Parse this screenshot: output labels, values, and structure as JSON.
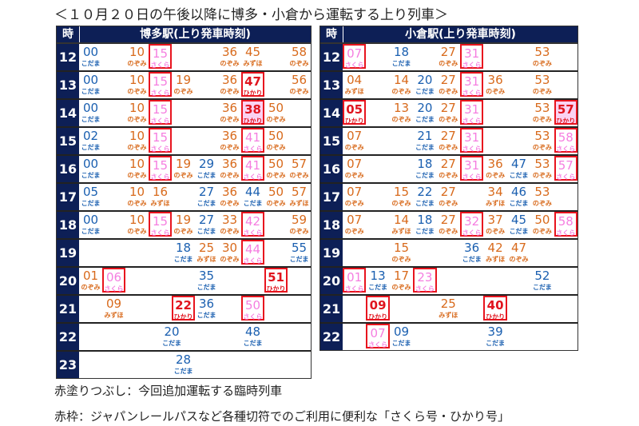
{
  "title": "＜１０月２０日の午後以降に博多・小倉から運転する上り列車＞",
  "colors": {
    "header_bg": "#0d1f56",
    "kodama": "#1a5fb0",
    "nozomi": "#d86a1c",
    "sakura": "#f57ee0",
    "hikari": "#e0141e",
    "box": "#e8141e",
    "fill": "#fbd2f2"
  },
  "tables": [
    {
      "hour_label": "時",
      "title": "博多駅(上り発車時刻)",
      "rows": [
        {
          "hour": "12",
          "trains": [
            {
              "c": 0,
              "min": "00",
              "type": "こだま"
            },
            {
              "c": 2,
              "min": "10",
              "type": "のぞみ"
            },
            {
              "c": 3,
              "min": "15",
              "type": "さくら",
              "box": true
            },
            {
              "c": 6,
              "min": "36",
              "type": "のぞみ"
            },
            {
              "c": 7,
              "min": "45",
              "type": "みずほ"
            },
            {
              "c": 9,
              "min": "58",
              "type": "のぞみ"
            }
          ]
        },
        {
          "hour": "13",
          "trains": [
            {
              "c": 0,
              "min": "00",
              "type": "こだま"
            },
            {
              "c": 2,
              "min": "10",
              "type": "のぞみ"
            },
            {
              "c": 3,
              "min": "15",
              "type": "さくら",
              "box": true
            },
            {
              "c": 4,
              "min": "19",
              "type": "のぞみ"
            },
            {
              "c": 6,
              "min": "36",
              "type": "のぞみ"
            },
            {
              "c": 7,
              "min": "47",
              "type": "ひかり",
              "box": true
            },
            {
              "c": 9,
              "min": "56",
              "type": "のぞみ"
            }
          ]
        },
        {
          "hour": "14",
          "trains": [
            {
              "c": 0,
              "min": "00",
              "type": "こだま"
            },
            {
              "c": 2,
              "min": "10",
              "type": "のぞみ"
            },
            {
              "c": 3,
              "min": "15",
              "type": "さくら",
              "box": true
            },
            {
              "c": 6,
              "min": "36",
              "type": "のぞみ"
            },
            {
              "c": 7,
              "min": "38",
              "type": "ひかり",
              "box": true,
              "fill": true
            },
            {
              "c": 8,
              "min": "50",
              "type": "のぞみ"
            }
          ]
        },
        {
          "hour": "15",
          "trains": [
            {
              "c": 0,
              "min": "02",
              "type": "こだま"
            },
            {
              "c": 2,
              "min": "10",
              "type": "のぞみ"
            },
            {
              "c": 3,
              "min": "15",
              "type": "さくら",
              "box": true
            },
            {
              "c": 6,
              "min": "36",
              "type": "のぞみ"
            },
            {
              "c": 7,
              "min": "41",
              "type": "さくら",
              "box": true
            },
            {
              "c": 8,
              "min": "50",
              "type": "のぞみ"
            }
          ]
        },
        {
          "hour": "16",
          "trains": [
            {
              "c": 0,
              "min": "00",
              "type": "こだま"
            },
            {
              "c": 2,
              "min": "10",
              "type": "のぞみ"
            },
            {
              "c": 3,
              "min": "15",
              "type": "さくら",
              "box": true
            },
            {
              "c": 4,
              "min": "19",
              "type": "のぞみ"
            },
            {
              "c": 5,
              "min": "29",
              "type": "こだま"
            },
            {
              "c": 6,
              "min": "36",
              "type": "のぞみ"
            },
            {
              "c": 7,
              "min": "41",
              "type": "さくら",
              "box": true
            },
            {
              "c": 8,
              "min": "50",
              "type": "のぞみ"
            },
            {
              "c": 9,
              "min": "57",
              "type": "のぞみ"
            }
          ]
        },
        {
          "hour": "17",
          "trains": [
            {
              "c": 0,
              "min": "05",
              "type": "こだま"
            },
            {
              "c": 2,
              "min": "10",
              "type": "のぞみ"
            },
            {
              "c": 3,
              "min": "16",
              "type": "みずほ"
            },
            {
              "c": 5,
              "min": "27",
              "type": "こだま"
            },
            {
              "c": 6,
              "min": "36",
              "type": "のぞみ"
            },
            {
              "c": 7,
              "min": "44",
              "type": "こだま"
            },
            {
              "c": 8,
              "min": "50",
              "type": "のぞみ"
            },
            {
              "c": 9,
              "min": "57",
              "type": "みずほ"
            }
          ]
        },
        {
          "hour": "18",
          "trains": [
            {
              "c": 0,
              "min": "00",
              "type": "こだま"
            },
            {
              "c": 2,
              "min": "10",
              "type": "のぞみ"
            },
            {
              "c": 3,
              "min": "15",
              "type": "さくら",
              "box": true
            },
            {
              "c": 4,
              "min": "19",
              "type": "のぞみ"
            },
            {
              "c": 5,
              "min": "27",
              "type": "こだま"
            },
            {
              "c": 6,
              "min": "33",
              "type": "のぞみ"
            },
            {
              "c": 7,
              "min": "42",
              "type": "さくら",
              "box": true
            },
            {
              "c": 9,
              "min": "59",
              "type": "のぞみ"
            }
          ]
        },
        {
          "hour": "19",
          "trains": [
            {
              "c": 4,
              "min": "18",
              "type": "こだま"
            },
            {
              "c": 5,
              "min": "25",
              "type": "みずほ"
            },
            {
              "c": 6,
              "min": "30",
              "type": "のぞみ"
            },
            {
              "c": 7,
              "min": "44",
              "type": "さくら",
              "box": true
            },
            {
              "c": 9,
              "min": "55",
              "type": "こだま"
            }
          ]
        },
        {
          "hour": "20",
          "trains": [
            {
              "c": 0,
              "min": "01",
              "type": "のぞみ"
            },
            {
              "c": 1,
              "min": "06",
              "type": "さくら",
              "box": true
            },
            {
              "c": 5,
              "min": "35",
              "type": "こだま"
            },
            {
              "c": 8,
              "min": "51",
              "type": "ひかり",
              "box": true
            }
          ]
        },
        {
          "hour": "21",
          "trains": [
            {
              "c": 1,
              "min": "09",
              "type": "みずほ"
            },
            {
              "c": 4,
              "min": "22",
              "type": "ひかり",
              "box": true
            },
            {
              "c": 5,
              "min": "36",
              "type": "こだま"
            },
            {
              "c": 7,
              "min": "50",
              "type": "さくら",
              "box": true
            }
          ]
        },
        {
          "hour": "22",
          "trains": [
            {
              "c": 3.5,
              "min": "20",
              "type": "こだま"
            },
            {
              "c": 7,
              "min": "48",
              "type": "こだま"
            }
          ]
        },
        {
          "hour": "23",
          "trains": [
            {
              "c": 4,
              "min": "28",
              "type": "こだま"
            }
          ]
        }
      ]
    },
    {
      "hour_label": "時",
      "title": "小倉駅(上り発車時刻)",
      "rows": [
        {
          "hour": "12",
          "trains": [
            {
              "c": 0,
              "min": "07",
              "type": "さくら",
              "box": true
            },
            {
              "c": 2,
              "min": "18",
              "type": "こだま"
            },
            {
              "c": 4,
              "min": "27",
              "type": "のぞみ"
            },
            {
              "c": 5,
              "min": "31",
              "type": "さくら",
              "box": true
            },
            {
              "c": 8,
              "min": "53",
              "type": "のぞみ"
            }
          ]
        },
        {
          "hour": "13",
          "trains": [
            {
              "c": 0,
              "min": "04",
              "type": "みずほ"
            },
            {
              "c": 2,
              "min": "14",
              "type": "のぞみ"
            },
            {
              "c": 3,
              "min": "20",
              "type": "こだま"
            },
            {
              "c": 4,
              "min": "27",
              "type": "のぞみ"
            },
            {
              "c": 5,
              "min": "31",
              "type": "さくら",
              "box": true
            },
            {
              "c": 6,
              "min": "36",
              "type": "のぞみ"
            },
            {
              "c": 8,
              "min": "53",
              "type": "のぞみ"
            }
          ]
        },
        {
          "hour": "14",
          "trains": [
            {
              "c": 0,
              "min": "05",
              "type": "ひかり",
              "box": true
            },
            {
              "c": 2,
              "min": "13",
              "type": "のぞみ"
            },
            {
              "c": 3,
              "min": "20",
              "type": "こだま"
            },
            {
              "c": 4,
              "min": "27",
              "type": "のぞみ"
            },
            {
              "c": 5,
              "min": "31",
              "type": "さくら",
              "box": true
            },
            {
              "c": 8,
              "min": "53",
              "type": "のぞみ"
            },
            {
              "c": 9,
              "min": "57",
              "type": "ひかり",
              "box": true,
              "fill": true
            }
          ]
        },
        {
          "hour": "15",
          "trains": [
            {
              "c": 0,
              "min": "07",
              "type": "のぞみ"
            },
            {
              "c": 3,
              "min": "21",
              "type": "こだま"
            },
            {
              "c": 4,
              "min": "27",
              "type": "のぞみ"
            },
            {
              "c": 5,
              "min": "31",
              "type": "さくら",
              "box": true
            },
            {
              "c": 8,
              "min": "53",
              "type": "のぞみ"
            },
            {
              "c": 9,
              "min": "58",
              "type": "さくら",
              "box": true
            }
          ]
        },
        {
          "hour": "16",
          "trains": [
            {
              "c": 0,
              "min": "07",
              "type": "のぞみ"
            },
            {
              "c": 3,
              "min": "18",
              "type": "こだま"
            },
            {
              "c": 4,
              "min": "27",
              "type": "のぞみ"
            },
            {
              "c": 5,
              "min": "31",
              "type": "さくら",
              "box": true
            },
            {
              "c": 6,
              "min": "36",
              "type": "のぞみ"
            },
            {
              "c": 7,
              "min": "47",
              "type": "こだま"
            },
            {
              "c": 8,
              "min": "53",
              "type": "のぞみ"
            },
            {
              "c": 9,
              "min": "57",
              "type": "さくら",
              "box": true
            }
          ]
        },
        {
          "hour": "17",
          "trains": [
            {
              "c": 0,
              "min": "07",
              "type": "のぞみ"
            },
            {
              "c": 2,
              "min": "15",
              "type": "のぞみ"
            },
            {
              "c": 3,
              "min": "22",
              "type": "こだま"
            },
            {
              "c": 4,
              "min": "27",
              "type": "のぞみ"
            },
            {
              "c": 6,
              "min": "34",
              "type": "みずほ"
            },
            {
              "c": 7,
              "min": "46",
              "type": "こだま"
            },
            {
              "c": 8,
              "min": "53",
              "type": "のぞみ"
            }
          ]
        },
        {
          "hour": "18",
          "trains": [
            {
              "c": 0,
              "min": "07",
              "type": "のぞみ"
            },
            {
              "c": 2,
              "min": "14",
              "type": "みずほ"
            },
            {
              "c": 3,
              "min": "18",
              "type": "こだま"
            },
            {
              "c": 4,
              "min": "27",
              "type": "のぞみ"
            },
            {
              "c": 5,
              "min": "32",
              "type": "さくら",
              "box": true
            },
            {
              "c": 6,
              "min": "37",
              "type": "のぞみ"
            },
            {
              "c": 7,
              "min": "45",
              "type": "こだま"
            },
            {
              "c": 8,
              "min": "50",
              "type": "のぞみ"
            },
            {
              "c": 9,
              "min": "58",
              "type": "さくら",
              "box": true
            }
          ]
        },
        {
          "hour": "19",
          "trains": [
            {
              "c": 2,
              "min": "15",
              "type": "のぞみ"
            },
            {
              "c": 5,
              "min": "36",
              "type": "こだま"
            },
            {
              "c": 6,
              "min": "42",
              "type": "みずほ"
            },
            {
              "c": 7,
              "min": "47",
              "type": "のぞみ"
            }
          ]
        },
        {
          "hour": "20",
          "trains": [
            {
              "c": 0,
              "min": "01",
              "type": "さくら",
              "box": true
            },
            {
              "c": 1,
              "min": "13",
              "type": "こだま"
            },
            {
              "c": 2,
              "min": "17",
              "type": "のぞみ"
            },
            {
              "c": 3,
              "min": "23",
              "type": "さくら",
              "box": true
            },
            {
              "c": 8,
              "min": "52",
              "type": "こだま"
            }
          ]
        },
        {
          "hour": "21",
          "trains": [
            {
              "c": 1,
              "min": "09",
              "type": "ひかり",
              "box": true
            },
            {
              "c": 4,
              "min": "25",
              "type": "みずほ"
            },
            {
              "c": 6,
              "min": "40",
              "type": "ひかり",
              "box": true
            }
          ]
        },
        {
          "hour": "22",
          "trains": [
            {
              "c": 1,
              "min": "07",
              "type": "さくら",
              "box": true
            },
            {
              "c": 2,
              "min": "09",
              "type": "こだま"
            },
            {
              "c": 6,
              "min": "39",
              "type": "こだま"
            }
          ]
        }
      ]
    }
  ],
  "notes": [
    "赤塗りつぶし：今回追加運転する臨時列車",
    "赤枠：ジャパンレールパスなど各種切符でのご利用に便利な「さくら号・ひかり号」"
  ]
}
